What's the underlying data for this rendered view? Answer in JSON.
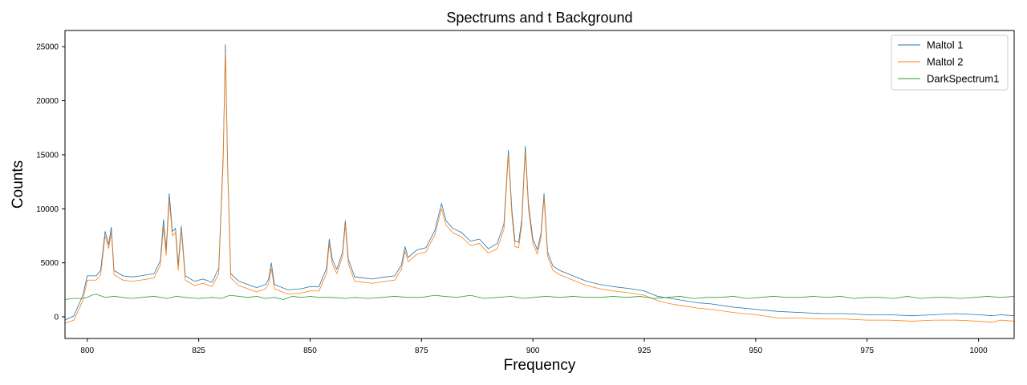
{
  "chart_data": {
    "type": "line",
    "title": "Spectrums and t Background",
    "xlabel": "Frequency",
    "ylabel": "Counts",
    "xlim": [
      795,
      1008
    ],
    "ylim": [
      -2000,
      26500
    ],
    "x_ticks": [
      800,
      825,
      850,
      875,
      900,
      925,
      950,
      975,
      1000
    ],
    "y_ticks": [
      0,
      5000,
      10000,
      15000,
      20000,
      25000
    ],
    "grid": false,
    "legend_position": "top-right",
    "colors": {
      "Maltol 1": "#1f77b4",
      "Maltol 2": "#ff7f0e",
      "DarkSpectrum1": "#2ca02c"
    },
    "series": [
      {
        "name": "Maltol 1",
        "color": "#1f77b4",
        "points": [
          [
            795,
            -300
          ],
          [
            797,
            100
          ],
          [
            799,
            2000
          ],
          [
            800,
            3800
          ],
          [
            802,
            3800
          ],
          [
            803,
            4300
          ],
          [
            804,
            7900
          ],
          [
            804.8,
            6700
          ],
          [
            805.4,
            8300
          ],
          [
            806,
            4300
          ],
          [
            808,
            3800
          ],
          [
            810,
            3700
          ],
          [
            812,
            3800
          ],
          [
            815,
            4000
          ],
          [
            816.4,
            5200
          ],
          [
            817.1,
            9000
          ],
          [
            817.7,
            6200
          ],
          [
            818.4,
            11400
          ],
          [
            819.1,
            7900
          ],
          [
            819.8,
            8200
          ],
          [
            820.4,
            4800
          ],
          [
            821.1,
            8400
          ],
          [
            822,
            3800
          ],
          [
            824,
            3300
          ],
          [
            826,
            3500
          ],
          [
            828,
            3200
          ],
          [
            829.5,
            4500
          ],
          [
            830.5,
            15000
          ],
          [
            831,
            25200
          ],
          [
            831.5,
            14000
          ],
          [
            832.2,
            4000
          ],
          [
            834,
            3300
          ],
          [
            836,
            3000
          ],
          [
            838,
            2700
          ],
          [
            840,
            3000
          ],
          [
            840.7,
            3500
          ],
          [
            841.3,
            5000
          ],
          [
            842,
            3000
          ],
          [
            845,
            2500
          ],
          [
            848,
            2600
          ],
          [
            850,
            2800
          ],
          [
            852,
            2800
          ],
          [
            853.7,
            4500
          ],
          [
            854.3,
            7200
          ],
          [
            855,
            5300
          ],
          [
            856,
            4400
          ],
          [
            857.3,
            6000
          ],
          [
            857.9,
            8900
          ],
          [
            858.6,
            5300
          ],
          [
            860,
            3700
          ],
          [
            862,
            3600
          ],
          [
            864,
            3500
          ],
          [
            867,
            3700
          ],
          [
            869,
            3800
          ],
          [
            870.5,
            4800
          ],
          [
            871.3,
            6500
          ],
          [
            872,
            5500
          ],
          [
            874,
            6200
          ],
          [
            876,
            6400
          ],
          [
            878,
            8000
          ],
          [
            879.5,
            10500
          ],
          [
            880.5,
            8900
          ],
          [
            882,
            8200
          ],
          [
            884,
            7800
          ],
          [
            886,
            7000
          ],
          [
            888,
            7200
          ],
          [
            890,
            6300
          ],
          [
            892,
            6800
          ],
          [
            893.5,
            8600
          ],
          [
            894.5,
            15400
          ],
          [
            895.3,
            9800
          ],
          [
            896,
            7000
          ],
          [
            896.8,
            6900
          ],
          [
            897.5,
            9000
          ],
          [
            898.3,
            15800
          ],
          [
            899,
            10500
          ],
          [
            900,
            7200
          ],
          [
            901,
            6200
          ],
          [
            901.8,
            7700
          ],
          [
            902.5,
            11400
          ],
          [
            903.3,
            6000
          ],
          [
            904.5,
            4700
          ],
          [
            906,
            4300
          ],
          [
            909,
            3800
          ],
          [
            912,
            3300
          ],
          [
            915,
            3000
          ],
          [
            918,
            2800
          ],
          [
            922,
            2600
          ],
          [
            925,
            2400
          ],
          [
            928,
            1900
          ],
          [
            931,
            1700
          ],
          [
            934,
            1500
          ],
          [
            937,
            1300
          ],
          [
            940,
            1200
          ],
          [
            945,
            900
          ],
          [
            950,
            700
          ],
          [
            955,
            500
          ],
          [
            960,
            400
          ],
          [
            965,
            300
          ],
          [
            970,
            300
          ],
          [
            975,
            200
          ],
          [
            980,
            200
          ],
          [
            985,
            100
          ],
          [
            990,
            200
          ],
          [
            995,
            300
          ],
          [
            1000,
            200
          ],
          [
            1003,
            100
          ],
          [
            1005,
            200
          ],
          [
            1008,
            100
          ]
        ]
      },
      {
        "name": "Maltol 2",
        "color": "#ff7f0e",
        "points": [
          [
            795,
            -600
          ],
          [
            797,
            -300
          ],
          [
            799,
            1500
          ],
          [
            800,
            3400
          ],
          [
            802,
            3400
          ],
          [
            803,
            3900
          ],
          [
            804,
            7500
          ],
          [
            804.8,
            6300
          ],
          [
            805.4,
            7900
          ],
          [
            806,
            3900
          ],
          [
            808,
            3400
          ],
          [
            810,
            3300
          ],
          [
            812,
            3400
          ],
          [
            815,
            3600
          ],
          [
            816.4,
            4800
          ],
          [
            817.1,
            8400
          ],
          [
            817.7,
            5700
          ],
          [
            818.4,
            10800
          ],
          [
            819.1,
            7500
          ],
          [
            819.8,
            7800
          ],
          [
            820.4,
            4300
          ],
          [
            821.1,
            8000
          ],
          [
            822,
            3400
          ],
          [
            824,
            2900
          ],
          [
            826,
            3100
          ],
          [
            828,
            2800
          ],
          [
            829.5,
            4000
          ],
          [
            830.5,
            14400
          ],
          [
            831,
            24500
          ],
          [
            831.5,
            13500
          ],
          [
            832.2,
            3600
          ],
          [
            834,
            2900
          ],
          [
            836,
            2600
          ],
          [
            838,
            2300
          ],
          [
            840,
            2600
          ],
          [
            840.7,
            3100
          ],
          [
            841.3,
            4500
          ],
          [
            842,
            2600
          ],
          [
            845,
            2100
          ],
          [
            848,
            2200
          ],
          [
            850,
            2400
          ],
          [
            852,
            2400
          ],
          [
            853.7,
            4000
          ],
          [
            854.3,
            6800
          ],
          [
            855,
            4900
          ],
          [
            856,
            4000
          ],
          [
            857.3,
            5600
          ],
          [
            857.9,
            8500
          ],
          [
            858.6,
            4900
          ],
          [
            860,
            3300
          ],
          [
            862,
            3200
          ],
          [
            864,
            3100
          ],
          [
            867,
            3300
          ],
          [
            869,
            3400
          ],
          [
            870.5,
            4400
          ],
          [
            871.3,
            6100
          ],
          [
            872,
            5100
          ],
          [
            874,
            5800
          ],
          [
            876,
            6000
          ],
          [
            878,
            7600
          ],
          [
            879.5,
            10000
          ],
          [
            880.5,
            8500
          ],
          [
            882,
            7800
          ],
          [
            884,
            7400
          ],
          [
            886,
            6600
          ],
          [
            888,
            6800
          ],
          [
            890,
            5900
          ],
          [
            892,
            6300
          ],
          [
            893.5,
            8100
          ],
          [
            894.5,
            15000
          ],
          [
            895.3,
            9300
          ],
          [
            896,
            6500
          ],
          [
            896.8,
            6400
          ],
          [
            897.5,
            8500
          ],
          [
            898.3,
            15300
          ],
          [
            899,
            10000
          ],
          [
            900,
            6800
          ],
          [
            901,
            5800
          ],
          [
            901.8,
            7300
          ],
          [
            902.5,
            11000
          ],
          [
            903.3,
            5600
          ],
          [
            904.5,
            4300
          ],
          [
            906,
            3900
          ],
          [
            909,
            3400
          ],
          [
            912,
            2900
          ],
          [
            915,
            2600
          ],
          [
            918,
            2400
          ],
          [
            922,
            2200
          ],
          [
            925,
            2000
          ],
          [
            928,
            1500
          ],
          [
            931,
            1200
          ],
          [
            934,
            1000
          ],
          [
            937,
            800
          ],
          [
            940,
            700
          ],
          [
            945,
            400
          ],
          [
            950,
            200
          ],
          [
            955,
            -100
          ],
          [
            960,
            -100
          ],
          [
            965,
            -200
          ],
          [
            970,
            -200
          ],
          [
            975,
            -300
          ],
          [
            980,
            -300
          ],
          [
            985,
            -400
          ],
          [
            990,
            -300
          ],
          [
            995,
            -300
          ],
          [
            1000,
            -400
          ],
          [
            1003,
            -500
          ],
          [
            1005,
            -300
          ],
          [
            1008,
            -400
          ]
        ]
      },
      {
        "name": "DarkSpectrum1",
        "color": "#2ca02c",
        "points": [
          [
            795,
            1600
          ],
          [
            797,
            1700
          ],
          [
            799,
            1700
          ],
          [
            800,
            1800
          ],
          [
            801,
            2000
          ],
          [
            802,
            2100
          ],
          [
            804,
            1800
          ],
          [
            806,
            1900
          ],
          [
            808,
            1800
          ],
          [
            810,
            1700
          ],
          [
            812,
            1800
          ],
          [
            815,
            1900
          ],
          [
            818,
            1700
          ],
          [
            820,
            1900
          ],
          [
            822,
            1800
          ],
          [
            825,
            1700
          ],
          [
            828,
            1800
          ],
          [
            830,
            1700
          ],
          [
            832,
            2000
          ],
          [
            834,
            1900
          ],
          [
            836,
            1800
          ],
          [
            838,
            1900
          ],
          [
            840,
            1700
          ],
          [
            842,
            1800
          ],
          [
            844,
            1600
          ],
          [
            846,
            1900
          ],
          [
            848,
            1800
          ],
          [
            850,
            1900
          ],
          [
            852,
            1800
          ],
          [
            855,
            1800
          ],
          [
            858,
            1700
          ],
          [
            860,
            1800
          ],
          [
            863,
            1700
          ],
          [
            866,
            1800
          ],
          [
            869,
            1900
          ],
          [
            872,
            1800
          ],
          [
            875,
            1800
          ],
          [
            878,
            2000
          ],
          [
            880,
            1900
          ],
          [
            883,
            1800
          ],
          [
            886,
            2000
          ],
          [
            889,
            1700
          ],
          [
            892,
            1800
          ],
          [
            895,
            1900
          ],
          [
            898,
            1700
          ],
          [
            900,
            1800
          ],
          [
            903,
            1900
          ],
          [
            906,
            1800
          ],
          [
            909,
            1900
          ],
          [
            912,
            1800
          ],
          [
            915,
            1800
          ],
          [
            918,
            1900
          ],
          [
            921,
            1800
          ],
          [
            924,
            1900
          ],
          [
            927,
            1700
          ],
          [
            930,
            1800
          ],
          [
            933,
            1900
          ],
          [
            936,
            1700
          ],
          [
            939,
            1800
          ],
          [
            942,
            1800
          ],
          [
            945,
            1900
          ],
          [
            948,
            1700
          ],
          [
            951,
            1800
          ],
          [
            954,
            1900
          ],
          [
            957,
            1800
          ],
          [
            960,
            1800
          ],
          [
            963,
            1900
          ],
          [
            966,
            1800
          ],
          [
            969,
            1900
          ],
          [
            972,
            1700
          ],
          [
            975,
            1800
          ],
          [
            978,
            1800
          ],
          [
            981,
            1700
          ],
          [
            984,
            1900
          ],
          [
            987,
            1700
          ],
          [
            990,
            1800
          ],
          [
            993,
            1800
          ],
          [
            996,
            1700
          ],
          [
            999,
            1800
          ],
          [
            1002,
            1900
          ],
          [
            1005,
            1800
          ],
          [
            1008,
            1900
          ]
        ]
      }
    ]
  }
}
